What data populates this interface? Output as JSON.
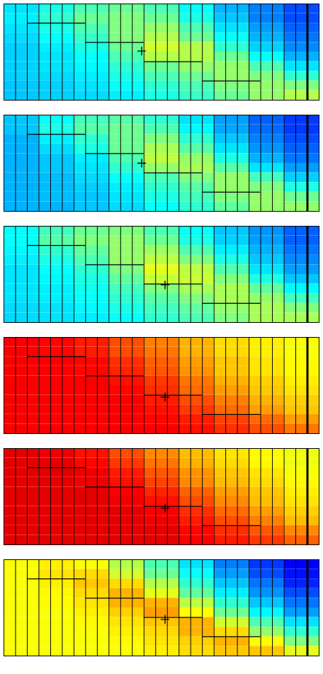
{
  "chart_data": [
    {
      "type": "heatmap",
      "tick_labels": false,
      "xlim": [
        0,
        27
      ],
      "ylim": [
        0,
        10
      ],
      "zlim": [
        0,
        1
      ],
      "x_edges": [
        0,
        3,
        6,
        9,
        12,
        15,
        18,
        21,
        24,
        27
      ],
      "y_edges": [
        0,
        1,
        2,
        3,
        4,
        5,
        6,
        7,
        8,
        9,
        10
      ],
      "cells": [
        [
          0.35,
          0.4,
          0.45,
          0.48,
          0.45,
          0.38,
          0.3,
          0.25,
          0.2
        ],
        [
          0.36,
          0.42,
          0.48,
          0.5,
          0.48,
          0.4,
          0.32,
          0.25,
          0.2
        ],
        [
          0.35,
          0.4,
          0.45,
          0.5,
          0.52,
          0.45,
          0.35,
          0.28,
          0.22
        ],
        [
          0.34,
          0.38,
          0.43,
          0.5,
          0.55,
          0.48,
          0.38,
          0.3,
          0.24
        ],
        [
          0.33,
          0.36,
          0.4,
          0.48,
          0.58,
          0.55,
          0.42,
          0.33,
          0.26
        ],
        [
          0.33,
          0.35,
          0.38,
          0.45,
          0.55,
          0.55,
          0.48,
          0.38,
          0.3
        ],
        [
          0.33,
          0.35,
          0.37,
          0.42,
          0.48,
          0.52,
          0.52,
          0.45,
          0.35
        ],
        [
          0.33,
          0.34,
          0.36,
          0.4,
          0.45,
          0.48,
          0.52,
          0.5,
          0.42
        ],
        [
          0.32,
          0.33,
          0.35,
          0.38,
          0.42,
          0.45,
          0.5,
          0.52,
          0.5
        ],
        [
          0.32,
          0.33,
          0.34,
          0.36,
          0.4,
          0.43,
          0.48,
          0.52,
          0.55
        ]
      ],
      "vlines": [
        1,
        2,
        3,
        4,
        5,
        6,
        7,
        8,
        9,
        10,
        11,
        12,
        13,
        14,
        15,
        16,
        17,
        18,
        19,
        20,
        21,
        22,
        23,
        24,
        25
      ],
      "thick_vline": 26,
      "steps": [
        {
          "x1": 2,
          "x2": 7,
          "y": 2
        },
        {
          "x1": 7,
          "x2": 12,
          "y": 4
        },
        {
          "x1": 12,
          "x2": 17,
          "y": 6
        },
        {
          "x1": 17,
          "x2": 22,
          "y": 8
        }
      ],
      "cross": [
        11.8,
        4.9
      ]
    },
    {
      "type": "heatmap",
      "tick_labels": false,
      "xlim": [
        0,
        27
      ],
      "ylim": [
        0,
        10
      ],
      "zlim": [
        0,
        1
      ],
      "x_edges": [
        0,
        3,
        6,
        9,
        12,
        15,
        18,
        21,
        24,
        27
      ],
      "y_edges": [
        0,
        1,
        2,
        3,
        4,
        5,
        6,
        7,
        8,
        9,
        10
      ],
      "cells": [
        [
          0.32,
          0.38,
          0.44,
          0.46,
          0.42,
          0.35,
          0.28,
          0.22,
          0.18
        ],
        [
          0.32,
          0.4,
          0.46,
          0.48,
          0.45,
          0.37,
          0.29,
          0.23,
          0.18
        ],
        [
          0.3,
          0.36,
          0.42,
          0.48,
          0.5,
          0.42,
          0.32,
          0.25,
          0.2
        ],
        [
          0.3,
          0.34,
          0.4,
          0.48,
          0.54,
          0.46,
          0.35,
          0.27,
          0.22
        ],
        [
          0.3,
          0.32,
          0.36,
          0.45,
          0.56,
          0.52,
          0.4,
          0.3,
          0.24
        ],
        [
          0.3,
          0.32,
          0.35,
          0.42,
          0.52,
          0.54,
          0.46,
          0.35,
          0.28
        ],
        [
          0.3,
          0.31,
          0.34,
          0.38,
          0.45,
          0.5,
          0.52,
          0.44,
          0.33
        ],
        [
          0.3,
          0.31,
          0.33,
          0.36,
          0.42,
          0.46,
          0.52,
          0.5,
          0.4
        ],
        [
          0.3,
          0.31,
          0.32,
          0.35,
          0.4,
          0.44,
          0.5,
          0.52,
          0.48
        ],
        [
          0.3,
          0.3,
          0.32,
          0.34,
          0.38,
          0.42,
          0.47,
          0.52,
          0.52
        ]
      ],
      "vlines": [
        1,
        2,
        3,
        4,
        5,
        6,
        7,
        8,
        9,
        10,
        11,
        12,
        13,
        14,
        15,
        16,
        17,
        18,
        19,
        20,
        21,
        22,
        23,
        24,
        25
      ],
      "thick_vline": 26,
      "steps": [
        {
          "x1": 2,
          "x2": 7,
          "y": 2
        },
        {
          "x1": 7,
          "x2": 12,
          "y": 4
        },
        {
          "x1": 12,
          "x2": 17,
          "y": 6
        },
        {
          "x1": 17,
          "x2": 22,
          "y": 8
        }
      ],
      "cross": [
        11.8,
        5.0
      ]
    },
    {
      "type": "heatmap",
      "tick_labels": false,
      "xlim": [
        0,
        27
      ],
      "ylim": [
        0,
        10
      ],
      "zlim": [
        0,
        1
      ],
      "x_edges": [
        0,
        3,
        6,
        9,
        12,
        15,
        18,
        21,
        24,
        27
      ],
      "y_edges": [
        0,
        1,
        2,
        3,
        4,
        5,
        6,
        7,
        8,
        9,
        10
      ],
      "cells": [
        [
          0.38,
          0.44,
          0.48,
          0.5,
          0.45,
          0.38,
          0.32,
          0.27,
          0.22
        ],
        [
          0.38,
          0.46,
          0.5,
          0.52,
          0.48,
          0.4,
          0.33,
          0.28,
          0.22
        ],
        [
          0.37,
          0.42,
          0.47,
          0.52,
          0.53,
          0.45,
          0.36,
          0.3,
          0.24
        ],
        [
          0.36,
          0.4,
          0.45,
          0.52,
          0.56,
          0.5,
          0.4,
          0.32,
          0.26
        ],
        [
          0.35,
          0.38,
          0.42,
          0.5,
          0.6,
          0.56,
          0.45,
          0.35,
          0.28
        ],
        [
          0.35,
          0.37,
          0.4,
          0.47,
          0.57,
          0.57,
          0.5,
          0.4,
          0.32
        ],
        [
          0.35,
          0.36,
          0.39,
          0.44,
          0.5,
          0.54,
          0.54,
          0.47,
          0.37
        ],
        [
          0.35,
          0.36,
          0.38,
          0.42,
          0.46,
          0.5,
          0.54,
          0.52,
          0.44
        ],
        [
          0.34,
          0.35,
          0.37,
          0.4,
          0.44,
          0.47,
          0.52,
          0.54,
          0.5
        ],
        [
          0.34,
          0.35,
          0.36,
          0.38,
          0.42,
          0.45,
          0.5,
          0.54,
          0.54
        ]
      ],
      "vlines": [
        1,
        2,
        3,
        4,
        5,
        6,
        7,
        8,
        9,
        10,
        11,
        12,
        13,
        14,
        15,
        16,
        17,
        18,
        19,
        20,
        21,
        22,
        23,
        24,
        25
      ],
      "thick_vline": 26,
      "steps": [
        {
          "x1": 2,
          "x2": 7,
          "y": 2
        },
        {
          "x1": 7,
          "x2": 12,
          "y": 4
        },
        {
          "x1": 12,
          "x2": 17,
          "y": 6
        },
        {
          "x1": 17,
          "x2": 22,
          "y": 8
        }
      ],
      "cross": [
        13.8,
        6.1
      ]
    },
    {
      "type": "heatmap",
      "tick_labels": false,
      "xlim": [
        0,
        27
      ],
      "ylim": [
        0,
        10
      ],
      "zlim": [
        0,
        1
      ],
      "x_edges": [
        0,
        3,
        6,
        9,
        12,
        15,
        18,
        21,
        24,
        27
      ],
      "y_edges": [
        0,
        1,
        2,
        3,
        4,
        5,
        6,
        7,
        8,
        9,
        10
      ],
      "cells": [
        [
          0.88,
          0.87,
          0.85,
          0.8,
          0.75,
          0.7,
          0.66,
          0.64,
          0.62
        ],
        [
          0.88,
          0.87,
          0.85,
          0.8,
          0.76,
          0.7,
          0.66,
          0.64,
          0.62
        ],
        [
          0.88,
          0.88,
          0.87,
          0.83,
          0.78,
          0.72,
          0.68,
          0.65,
          0.63
        ],
        [
          0.88,
          0.88,
          0.87,
          0.84,
          0.79,
          0.73,
          0.68,
          0.65,
          0.63
        ],
        [
          0.88,
          0.88,
          0.88,
          0.86,
          0.82,
          0.76,
          0.7,
          0.67,
          0.64
        ],
        [
          0.88,
          0.88,
          0.88,
          0.87,
          0.83,
          0.77,
          0.72,
          0.68,
          0.65
        ],
        [
          0.88,
          0.88,
          0.88,
          0.88,
          0.85,
          0.8,
          0.75,
          0.7,
          0.67
        ],
        [
          0.88,
          0.88,
          0.88,
          0.88,
          0.86,
          0.82,
          0.77,
          0.72,
          0.68
        ],
        [
          0.88,
          0.88,
          0.88,
          0.88,
          0.87,
          0.85,
          0.81,
          0.77,
          0.72
        ],
        [
          0.88,
          0.88,
          0.88,
          0.88,
          0.88,
          0.86,
          0.83,
          0.8,
          0.76
        ]
      ],
      "vlines": [
        1,
        2,
        3,
        4,
        5,
        6,
        7,
        8,
        9,
        10,
        11,
        12,
        13,
        14,
        15,
        16,
        17,
        18,
        19,
        20,
        21,
        22,
        23,
        24,
        25
      ],
      "thick_vline": 26,
      "steps": [
        {
          "x1": 2,
          "x2": 7,
          "y": 2
        },
        {
          "x1": 7,
          "x2": 12,
          "y": 4
        },
        {
          "x1": 12,
          "x2": 17,
          "y": 6
        },
        {
          "x1": 17,
          "x2": 22,
          "y": 8
        }
      ],
      "cross": [
        13.8,
        6.2
      ]
    },
    {
      "type": "heatmap",
      "tick_labels": false,
      "xlim": [
        0,
        27
      ],
      "ylim": [
        0,
        10
      ],
      "zlim": [
        0,
        1
      ],
      "x_edges": [
        0,
        3,
        6,
        9,
        12,
        15,
        18,
        21,
        24,
        27
      ],
      "y_edges": [
        0,
        1,
        2,
        3,
        4,
        5,
        6,
        7,
        8,
        9,
        10
      ],
      "cells": [
        [
          0.9,
          0.89,
          0.86,
          0.8,
          0.74,
          0.69,
          0.65,
          0.63,
          0.61
        ],
        [
          0.9,
          0.9,
          0.87,
          0.82,
          0.76,
          0.7,
          0.66,
          0.63,
          0.61
        ],
        [
          0.9,
          0.9,
          0.89,
          0.85,
          0.79,
          0.73,
          0.68,
          0.65,
          0.62
        ],
        [
          0.9,
          0.9,
          0.89,
          0.86,
          0.81,
          0.74,
          0.69,
          0.66,
          0.63
        ],
        [
          0.9,
          0.9,
          0.9,
          0.88,
          0.84,
          0.78,
          0.72,
          0.68,
          0.64
        ],
        [
          0.9,
          0.9,
          0.9,
          0.89,
          0.86,
          0.8,
          0.74,
          0.69,
          0.65
        ],
        [
          0.9,
          0.9,
          0.9,
          0.9,
          0.88,
          0.83,
          0.77,
          0.72,
          0.67
        ],
        [
          0.9,
          0.9,
          0.9,
          0.9,
          0.89,
          0.85,
          0.8,
          0.75,
          0.69
        ],
        [
          0.9,
          0.9,
          0.9,
          0.9,
          0.9,
          0.87,
          0.83,
          0.79,
          0.74
        ],
        [
          0.9,
          0.9,
          0.9,
          0.9,
          0.9,
          0.88,
          0.85,
          0.82,
          0.78
        ]
      ],
      "vlines": [
        1,
        2,
        3,
        4,
        5,
        6,
        7,
        8,
        9,
        10,
        11,
        12,
        13,
        14,
        15,
        16,
        17,
        18,
        19,
        20,
        21,
        22,
        23,
        24,
        25
      ],
      "thick_vline": 26,
      "steps": [
        {
          "x1": 2,
          "x2": 7,
          "y": 2
        },
        {
          "x1": 7,
          "x2": 12,
          "y": 4
        },
        {
          "x1": 12,
          "x2": 17,
          "y": 6
        },
        {
          "x1": 17,
          "x2": 22,
          "y": 8
        }
      ],
      "cross": [
        13.8,
        6.2
      ]
    },
    {
      "type": "heatmap",
      "tick_labels": false,
      "xlim": [
        0,
        27
      ],
      "ylim": [
        0,
        10
      ],
      "zlim": [
        0,
        1
      ],
      "x_edges": [
        0,
        3,
        6,
        9,
        12,
        15,
        18,
        21,
        24,
        27
      ],
      "y_edges": [
        0,
        1,
        2,
        3,
        4,
        5,
        6,
        7,
        8,
        9,
        10
      ],
      "cells": [
        [
          0.62,
          0.64,
          0.62,
          0.55,
          0.45,
          0.35,
          0.25,
          0.18,
          0.12
        ],
        [
          0.62,
          0.65,
          0.66,
          0.58,
          0.48,
          0.38,
          0.28,
          0.2,
          0.14
        ],
        [
          0.62,
          0.64,
          0.68,
          0.66,
          0.55,
          0.42,
          0.32,
          0.24,
          0.16
        ],
        [
          0.62,
          0.63,
          0.66,
          0.7,
          0.6,
          0.47,
          0.36,
          0.27,
          0.2
        ],
        [
          0.62,
          0.63,
          0.65,
          0.7,
          0.7,
          0.56,
          0.42,
          0.32,
          0.24
        ],
        [
          0.62,
          0.62,
          0.64,
          0.67,
          0.72,
          0.62,
          0.48,
          0.37,
          0.28
        ],
        [
          0.62,
          0.62,
          0.63,
          0.65,
          0.68,
          0.7,
          0.58,
          0.45,
          0.35
        ],
        [
          0.62,
          0.62,
          0.62,
          0.64,
          0.66,
          0.7,
          0.66,
          0.52,
          0.42
        ],
        [
          0.62,
          0.62,
          0.62,
          0.63,
          0.65,
          0.67,
          0.7,
          0.62,
          0.5
        ],
        [
          0.62,
          0.62,
          0.62,
          0.62,
          0.64,
          0.66,
          0.68,
          0.68,
          0.6
        ]
      ],
      "vlines": [
        1,
        2,
        3,
        4,
        5,
        6,
        7,
        8,
        9,
        10,
        11,
        12,
        13,
        14,
        15,
        16,
        17,
        18,
        19,
        20,
        21,
        22,
        23,
        24,
        25
      ],
      "thick_vline": 26,
      "steps": [
        {
          "x1": 2,
          "x2": 7,
          "y": 2
        },
        {
          "x1": 7,
          "x2": 12,
          "y": 4
        },
        {
          "x1": 12,
          "x2": 17,
          "y": 6
        },
        {
          "x1": 17,
          "x2": 22,
          "y": 8
        }
      ],
      "cross": [
        13.8,
        6.2
      ]
    }
  ]
}
